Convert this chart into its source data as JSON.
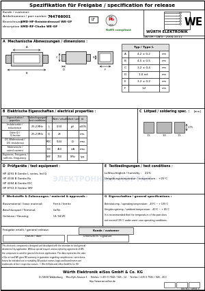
{
  "title": "Spezifikation für Freigabe / specification for release",
  "kunde_label": "Kunde / customer:",
  "artikel_label": "Artikelnummer / part number:",
  "artikel_value": "744766001",
  "bezeichnung_label": "Bezeichnung :",
  "bezeichnung_value": "SMD-HF-Entstördrossel WE-GF",
  "description_label": "description :",
  "description_value": "SMD-RF-Choke WE-GF",
  "lf_label": "LF",
  "rohs_label": "RoHS compliant",
  "datum_label": "DATUM / DATE : 2004-10-11",
  "section_a": "A  Mechanische Abmessungen / dimensions :",
  "dim_rows": [
    [
      "A",
      "4,2 ± 0,2",
      "mm"
    ],
    [
      "B",
      "4,5 ± 0,5",
      "mm"
    ],
    [
      "C",
      "3,2 ± 0,4",
      "mm"
    ],
    [
      "D",
      "1,0 ref.",
      "mm"
    ],
    [
      "E",
      "3,2 ± 0,2",
      "mm"
    ],
    [
      "F",
      "1,2",
      "mm"
    ]
  ],
  "section_b": "B  Elektrische Eigenschaften / electrical properties :",
  "elec_rows": [
    [
      "Induktivität /\ninductance",
      "25,2 MHz",
      "L",
      "0,50",
      "µH",
      "±10%"
    ],
    [
      "Güte Q /\nQ factor",
      "25,2 MHz",
      "Q",
      "28",
      "",
      "min."
    ],
    [
      "DC-Widerstand /\nDC resistance",
      "",
      "RDC",
      "0,44",
      "Ω",
      "max."
    ],
    [
      "Nennstrom /\nrated current",
      "",
      "IDC",
      "450",
      "mA",
      "max."
    ],
    [
      "Eigenres. Frequenz /\nself-res. frequency",
      "",
      "SRF",
      "700",
      "MHz",
      "typ."
    ]
  ],
  "section_c": "C  Lötpad / soldering spec. :",
  "section_d": "D  Prüfgeräte / test equipment :",
  "test_equipment": [
    "HP 4291 B Geräte L series, Ind Q",
    "HP 4338 B Geräte Ru",
    "HP 4284 A Geräte IDC",
    "HP 8753 D Geräte SRF"
  ],
  "section_e": "E  Testbedingungen / test conditions :",
  "test_conditions": [
    "Luftfeuchtigkeit / humidity :    21%",
    "Umgebungstemperatur / temperature :  +25°C"
  ],
  "section_f": "F  Werkstoffe & Zulassungen / material & approvals :",
  "materials": [
    [
      "Basismaterial / base material:",
      "Ferrit / ferrite"
    ],
    [
      "Anschlusspad / Terminal:",
      "Cu/Sn"
    ],
    [
      "Gehäuse / Housing:",
      "UL 94-V0"
    ]
  ],
  "section_g": "G  Eigenschaften / general specifications :",
  "gen_specs": [
    "Betriebstemp. / operating temperature:  -40°C ~ + 105°C",
    "Umgebungstemp. / ambient temperature:  -40°C ~ + 85°C",
    "It is recommended that the temperature of the part does",
    "not exceed 105°C under worst case operating conditions."
  ],
  "freigabe_label": "Freigabe erteilt / general release:",
  "kunde_customer_label": "Kunde / customer",
  "we_footer": "Würth Elektronik eiSos GmbH & Co. KG",
  "we_address": "D-74638 Waldenburg  ·  Max-Eyth-Strasse 1  ·  Telefax: (+49) 0 7942 / 945 - 14  ·  Telefon (+49) 0 7942 / 945 - 400",
  "we_web": "http://www.we-online.de",
  "page_ref": "08783 / 4994 1",
  "watermark_text": "ЭЛЕКТРОННЫЙ ПОРТАЛ",
  "bg_color": "#ffffff"
}
